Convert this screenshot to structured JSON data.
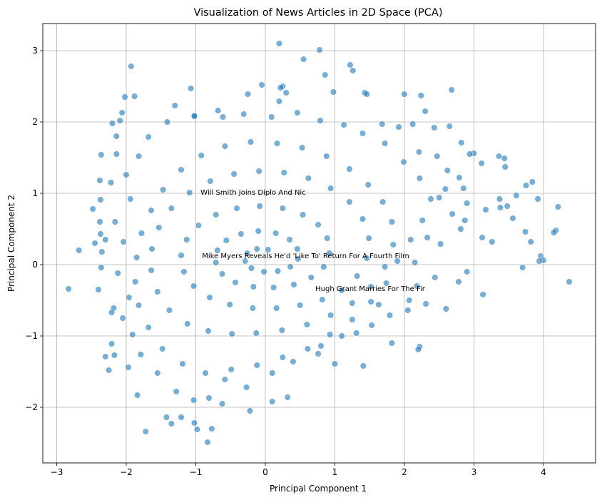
{
  "chart_data": {
    "type": "scatter",
    "title": "Visualization of News Articles in 2D Space (PCA)",
    "xlabel": "Principal Component 1",
    "ylabel": "Principal Component 2",
    "xlim": [
      -3.2,
      4.75
    ],
    "ylim": [
      -2.78,
      3.38
    ],
    "xticks": [
      -3,
      -2,
      -1,
      0,
      1,
      2,
      3,
      4
    ],
    "yticks": [
      -2,
      -1,
      0,
      1,
      2,
      3
    ],
    "xtick_labels": [
      "−3",
      "−2",
      "−1",
      "0",
      "1",
      "2",
      "3",
      "4"
    ],
    "ytick_labels": [
      "−2",
      "−1",
      "0",
      "1",
      "2",
      "3"
    ],
    "grid": true,
    "point_color": "#1f77b4",
    "point_alpha": 0.6,
    "series": [
      {
        "points": [
          [
            -2.83,
            -0.34
          ],
          [
            4.37,
            -0.24
          ],
          [
            0.78,
            3.01
          ],
          [
            0.2,
            3.1
          ],
          [
            -1.93,
            2.78
          ],
          [
            1.22,
            2.8
          ],
          [
            1.26,
            2.72
          ],
          [
            0.86,
            2.66
          ],
          [
            0.55,
            2.88
          ],
          [
            0.25,
            2.5
          ],
          [
            -0.05,
            2.52
          ],
          [
            -0.25,
            2.39
          ],
          [
            -1.07,
            2.47
          ],
          [
            0.98,
            2.42
          ],
          [
            1.43,
            2.41
          ],
          [
            2.68,
            2.45
          ],
          [
            2.24,
            2.37
          ],
          [
            -2.02,
            2.35
          ],
          [
            -1.88,
            2.36
          ],
          [
            -1.3,
            2.23
          ],
          [
            2.0,
            2.39
          ],
          [
            3.0,
            1.56
          ],
          [
            2.94,
            1.55
          ],
          [
            3.11,
            1.42
          ],
          [
            3.36,
            1.52
          ],
          [
            3.44,
            1.49
          ],
          [
            3.45,
            1.37
          ],
          [
            3.84,
            1.16
          ],
          [
            3.75,
            1.11
          ],
          [
            3.61,
            0.97
          ],
          [
            3.37,
            0.92
          ],
          [
            3.38,
            0.8
          ],
          [
            3.48,
            0.82
          ],
          [
            3.92,
            0.92
          ],
          [
            4.21,
            0.81
          ],
          [
            3.17,
            0.77
          ],
          [
            3.56,
            0.65
          ],
          [
            3.74,
            0.46
          ],
          [
            4.18,
            0.48
          ],
          [
            4.15,
            0.45
          ],
          [
            3.82,
            0.32
          ],
          [
            3.96,
            0.12
          ],
          [
            4.0,
            0.06
          ],
          [
            3.94,
            0.05
          ],
          [
            3.7,
            -0.04
          ],
          [
            3.12,
            0.38
          ],
          [
            3.26,
            0.32
          ],
          [
            2.87,
            0.62
          ],
          [
            3.13,
            -0.42
          ],
          [
            2.9,
            -0.1
          ],
          [
            2.78,
            -0.24
          ],
          [
            2.6,
            -0.62
          ],
          [
            2.31,
            -0.55
          ],
          [
            2.07,
            -0.5
          ],
          [
            2.22,
            -1.15
          ],
          [
            2.2,
            -1.19
          ],
          [
            1.82,
            -1.1
          ],
          [
            1.41,
            -1.42
          ],
          [
            1.0,
            -1.39
          ],
          [
            0.8,
            -1.14
          ],
          [
            0.32,
            -1.86
          ],
          [
            0.1,
            -1.92
          ],
          [
            -0.22,
            -2.05
          ],
          [
            -0.62,
            -1.95
          ],
          [
            -0.77,
            -2.3
          ],
          [
            -0.98,
            -2.31
          ],
          [
            -0.83,
            -2.49
          ],
          [
            -1.02,
            -2.22
          ],
          [
            -1.21,
            -2.14
          ],
          [
            -1.35,
            -2.23
          ],
          [
            -1.42,
            -2.14
          ],
          [
            -1.72,
            -2.34
          ],
          [
            -1.84,
            -1.83
          ],
          [
            -1.97,
            -1.44
          ],
          [
            -2.17,
            -1.27
          ],
          [
            -2.25,
            -1.48
          ],
          [
            -2.3,
            -1.29
          ],
          [
            -2.21,
            -1.11
          ],
          [
            -2.18,
            -0.61
          ],
          [
            -2.21,
            -0.67
          ],
          [
            -2.4,
            -0.35
          ],
          [
            -2.36,
            -0.04
          ],
          [
            -2.45,
            0.3
          ],
          [
            -2.3,
            0.35
          ],
          [
            -2.68,
            0.2
          ],
          [
            -2.35,
            0.18
          ],
          [
            -2.37,
            0.43
          ],
          [
            -2.38,
            0.6
          ],
          [
            -2.48,
            0.78
          ],
          [
            -2.37,
            0.91
          ],
          [
            -2.38,
            1.18
          ],
          [
            -2.22,
            1.15
          ],
          [
            -2.36,
            1.54
          ],
          [
            -2.14,
            1.55
          ],
          [
            -2.14,
            1.8
          ],
          [
            -2.2,
            1.98
          ],
          [
            -2.06,
            2.13
          ],
          [
            -2.09,
            2.02
          ],
          [
            -1.02,
            2.09
          ],
          [
            -0.61,
            2.07
          ],
          [
            0.3,
            2.41
          ],
          [
            0.2,
            2.29
          ],
          [
            0.22,
            2.48
          ],
          [
            1.46,
            2.39
          ],
          [
            1.68,
            1.97
          ],
          [
            1.92,
            1.93
          ],
          [
            2.12,
            1.97
          ],
          [
            2.3,
            2.15
          ],
          [
            2.43,
            1.92
          ],
          [
            2.65,
            1.94
          ],
          [
            2.82,
            1.71
          ],
          [
            2.47,
            1.52
          ],
          [
            2.21,
            1.58
          ],
          [
            2.62,
            1.32
          ],
          [
            2.79,
            1.22
          ],
          [
            2.85,
            1.07
          ],
          [
            2.9,
            0.86
          ],
          [
            2.59,
            1.06
          ],
          [
            2.5,
            0.94
          ],
          [
            2.69,
            0.71
          ],
          [
            2.81,
            0.5
          ],
          [
            2.52,
            0.29
          ],
          [
            2.33,
            0.38
          ],
          [
            2.15,
            0.03
          ],
          [
            2.44,
            -0.18
          ],
          [
            2.18,
            -0.3
          ],
          [
            2.05,
            -0.64
          ],
          [
            1.79,
            -0.71
          ],
          [
            1.63,
            -0.56
          ],
          [
            1.53,
            -0.85
          ],
          [
            1.31,
            -0.96
          ],
          [
            1.1,
            -1.0
          ],
          [
            0.76,
            -1.25
          ],
          [
            0.4,
            -1.36
          ],
          [
            0.1,
            -1.52
          ],
          [
            -0.27,
            -1.72
          ],
          [
            -0.58,
            -1.61
          ],
          [
            -0.81,
            -1.87
          ],
          [
            -1.03,
            -1.9
          ],
          [
            -1.28,
            -1.78
          ],
          [
            -1.55,
            -1.52
          ],
          [
            -1.79,
            -1.26
          ],
          [
            -1.91,
            -0.98
          ],
          [
            -2.05,
            -0.75
          ],
          [
            -1.96,
            -0.46
          ],
          [
            -2.12,
            -0.12
          ],
          [
            -2.04,
            0.32
          ],
          [
            -2.16,
            0.6
          ],
          [
            -1.94,
            0.92
          ],
          [
            -2.0,
            1.26
          ],
          [
            -1.82,
            1.52
          ],
          [
            -1.68,
            1.79
          ],
          [
            -1.41,
            2.0
          ],
          [
            -1.02,
            2.08
          ],
          [
            -0.68,
            2.16
          ],
          [
            -0.31,
            2.11
          ],
          [
            0.09,
            2.07
          ],
          [
            0.46,
            2.13
          ],
          [
            0.79,
            2.02
          ],
          [
            1.13,
            1.96
          ],
          [
            1.4,
            1.84
          ],
          [
            1.72,
            1.7
          ],
          [
            1.99,
            1.44
          ],
          [
            2.22,
            1.21
          ],
          [
            2.38,
            0.92
          ],
          [
            2.26,
            0.62
          ],
          [
            2.09,
            0.35
          ],
          [
            1.9,
            0.05
          ],
          [
            1.74,
            -0.26
          ],
          [
            1.52,
            -0.52
          ],
          [
            1.25,
            -0.77
          ],
          [
            0.93,
            -0.98
          ],
          [
            0.61,
            -1.18
          ],
          [
            0.25,
            -1.3
          ],
          [
            -0.12,
            -1.41
          ],
          [
            -0.49,
            -1.47
          ],
          [
            -0.86,
            -1.52
          ],
          [
            -1.19,
            -1.39
          ],
          [
            -1.48,
            -1.18
          ],
          [
            -1.68,
            -0.88
          ],
          [
            -1.82,
            -0.57
          ],
          [
            -1.87,
            -0.24
          ],
          [
            -1.85,
            0.1
          ],
          [
            -1.78,
            0.44
          ],
          [
            -1.64,
            0.76
          ],
          [
            -1.47,
            1.05
          ],
          [
            -1.21,
            1.33
          ],
          [
            -0.92,
            1.53
          ],
          [
            -0.58,
            1.66
          ],
          [
            -0.21,
            1.72
          ],
          [
            0.17,
            1.7
          ],
          [
            0.53,
            1.64
          ],
          [
            0.88,
            1.52
          ],
          [
            1.21,
            1.34
          ],
          [
            1.48,
            1.12
          ],
          [
            1.69,
            0.88
          ],
          [
            1.82,
            0.6
          ],
          [
            1.84,
            0.28
          ],
          [
            1.72,
            -0.03
          ],
          [
            1.52,
            -0.31
          ],
          [
            1.25,
            -0.54
          ],
          [
            0.94,
            -0.71
          ],
          [
            0.6,
            -0.84
          ],
          [
            0.24,
            -0.92
          ],
          [
            -0.13,
            -0.96
          ],
          [
            -0.48,
            -0.97
          ],
          [
            -0.82,
            -0.93
          ],
          [
            -1.12,
            -0.83
          ],
          [
            -1.38,
            -0.64
          ],
          [
            -1.55,
            -0.38
          ],
          [
            -1.64,
            -0.08
          ],
          [
            -1.63,
            0.22
          ],
          [
            -1.53,
            0.52
          ],
          [
            -1.35,
            0.79
          ],
          [
            -1.09,
            1.01
          ],
          [
            -0.79,
            1.17
          ],
          [
            -0.45,
            1.27
          ],
          [
            -0.09,
            1.31
          ],
          [
            0.27,
            1.29
          ],
          [
            0.62,
            1.21
          ],
          [
            0.94,
            1.07
          ],
          [
            1.21,
            0.88
          ],
          [
            1.4,
            0.64
          ],
          [
            1.49,
            0.37
          ],
          [
            1.46,
            0.09
          ],
          [
            1.32,
            -0.16
          ],
          [
            1.1,
            -0.36
          ],
          [
            0.82,
            -0.49
          ],
          [
            0.5,
            -0.57
          ],
          [
            0.16,
            -0.61
          ],
          [
            -0.18,
            -0.61
          ],
          [
            -0.51,
            -0.56
          ],
          [
            -0.8,
            -0.46
          ],
          [
            -1.03,
            -0.3
          ],
          [
            -1.17,
            -0.1
          ],
          [
            -1.21,
            0.13
          ],
          [
            -1.13,
            0.35
          ],
          [
            -0.96,
            0.55
          ],
          [
            -0.71,
            0.7
          ],
          [
            -0.41,
            0.79
          ],
          [
            -0.08,
            0.82
          ],
          [
            0.25,
            0.79
          ],
          [
            0.54,
            0.7
          ],
          [
            0.76,
            0.56
          ],
          [
            0.89,
            0.37
          ],
          [
            0.92,
            0.16
          ],
          [
            0.84,
            -0.03
          ],
          [
            0.66,
            -0.18
          ],
          [
            0.41,
            -0.28
          ],
          [
            0.12,
            -0.32
          ],
          [
            -0.17,
            -0.31
          ],
          [
            -0.43,
            -0.25
          ],
          [
            -0.62,
            -0.13
          ],
          [
            -0.71,
            0.03
          ],
          [
            -0.69,
            0.2
          ],
          [
            -0.56,
            0.34
          ],
          [
            -0.35,
            0.43
          ],
          [
            -0.1,
            0.47
          ],
          [
            0.15,
            0.44
          ],
          [
            0.35,
            0.35
          ],
          [
            0.46,
            0.22
          ],
          [
            0.47,
            0.08
          ],
          [
            0.36,
            -0.03
          ],
          [
            0.18,
            -0.09
          ],
          [
            -0.02,
            -0.1
          ],
          [
            -0.2,
            -0.05
          ],
          [
            -0.29,
            0.05
          ],
          [
            -0.26,
            0.16
          ],
          [
            -0.12,
            0.22
          ],
          [
            0.04,
            0.21
          ]
        ]
      }
    ],
    "annotations": [
      {
        "text": "Will Smith Joins Diplo And Nic",
        "x": -0.93,
        "y": 0.98
      },
      {
        "text": "Mike Myers Reveals He'd 'Like To' Return For A Fourth Film",
        "x": -0.91,
        "y": 0.09
      },
      {
        "text": "Hugh Grant Marries For The Fir",
        "x": 0.72,
        "y": -0.37
      }
    ]
  }
}
